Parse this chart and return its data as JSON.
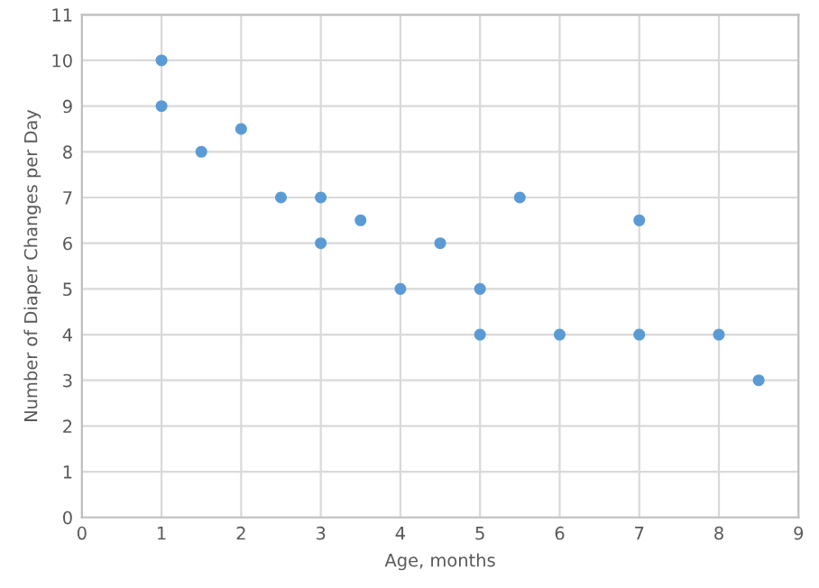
{
  "chart_data": {
    "type": "scatter",
    "xlabel": "Age, months",
    "ylabel": "Number of Diaper Changes per Day",
    "x": [
      1,
      1,
      1.5,
      2,
      2.5,
      3,
      3,
      3.5,
      4,
      4.5,
      5,
      5,
      5.5,
      6,
      7,
      7,
      8,
      8.5
    ],
    "series": [
      {
        "color": "#5b9bd5",
        "values": [
          10,
          9,
          8,
          8.5,
          7,
          7,
          6,
          6.5,
          5,
          6,
          5,
          4,
          7,
          4,
          6.5,
          4,
          4,
          3
        ]
      }
    ],
    "xlim": [
      0,
      9
    ],
    "xticks": [
      0,
      1,
      2,
      3,
      4,
      5,
      6,
      7,
      8,
      9
    ],
    "ylim": [
      0,
      11
    ],
    "yticks": [
      0,
      1,
      2,
      3,
      4,
      5,
      6,
      7,
      8,
      9,
      10,
      11
    ],
    "grid": true,
    "marker": "circle"
  }
}
